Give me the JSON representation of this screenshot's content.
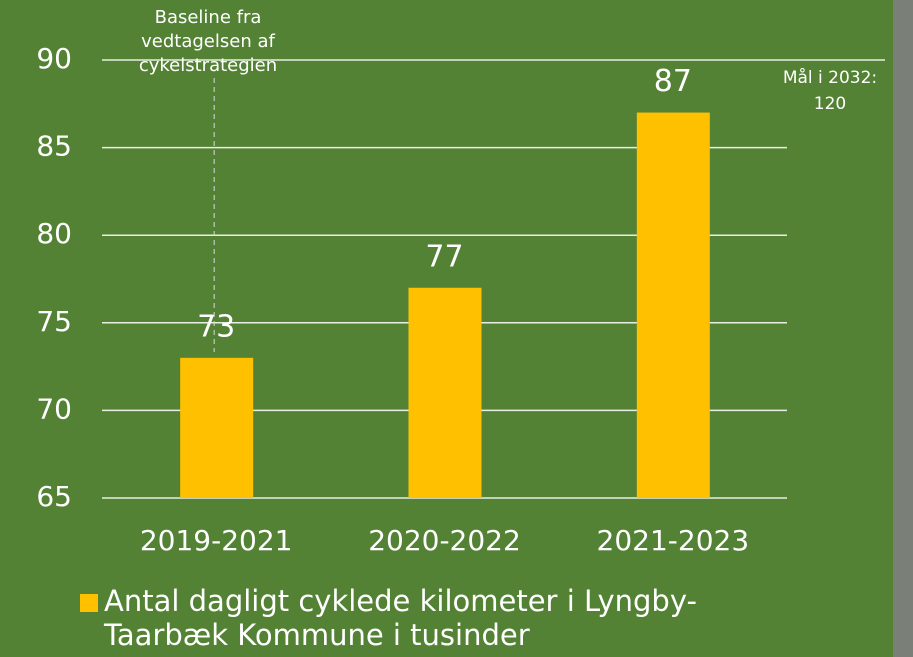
{
  "chart_data": {
    "type": "bar",
    "categories": [
      "2019-2021",
      "2020-2022",
      "2021-2023"
    ],
    "series": [
      {
        "name": "Antal dagligt cyklede kilometer i Lyngby-Taarbæk Kommune i tusinder",
        "color": "#ffc000",
        "values": [
          73,
          77,
          87
        ]
      }
    ],
    "ylim": [
      65,
      90
    ],
    "yticks": [
      65,
      70,
      75,
      80,
      85,
      90
    ],
    "grid": true,
    "annotations": [
      {
        "lines": [
          "Baseline fra",
          "vedtagelsen af",
          "cykelstrategien"
        ]
      },
      {
        "lines": [
          "Mål i 2032:",
          "120"
        ]
      }
    ]
  }
}
